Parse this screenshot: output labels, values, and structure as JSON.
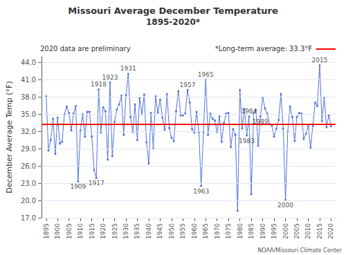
{
  "chart_data": {
    "type": "line",
    "title": "Missouri Average December Temperature",
    "subtitle": "1895-2020*",
    "ylabel": "December Average Temp (°F)",
    "marker": "circle",
    "x": [
      1895,
      1896,
      1897,
      1898,
      1899,
      1900,
      1901,
      1902,
      1903,
      1904,
      1905,
      1906,
      1907,
      1908,
      1909,
      1910,
      1911,
      1912,
      1913,
      1914,
      1915,
      1916,
      1917,
      1918,
      1919,
      1920,
      1921,
      1922,
      1923,
      1924,
      1925,
      1926,
      1927,
      1928,
      1929,
      1930,
      1931,
      1932,
      1933,
      1934,
      1935,
      1936,
      1937,
      1938,
      1939,
      1940,
      1941,
      1942,
      1943,
      1944,
      1945,
      1946,
      1947,
      1948,
      1949,
      1950,
      1951,
      1952,
      1953,
      1954,
      1955,
      1956,
      1957,
      1958,
      1959,
      1960,
      1961,
      1962,
      1963,
      1964,
      1965,
      1966,
      1967,
      1968,
      1969,
      1970,
      1971,
      1972,
      1973,
      1974,
      1975,
      1976,
      1977,
      1978,
      1979,
      1980,
      1981,
      1982,
      1983,
      1984,
      1985,
      1986,
      1987,
      1988,
      1989,
      1990,
      1991,
      1992,
      1993,
      1994,
      1995,
      1996,
      1997,
      1998,
      1999,
      2000,
      2001,
      2002,
      2003,
      2004,
      2005,
      2006,
      2007,
      2008,
      2009,
      2010,
      2011,
      2012,
      2013,
      2014,
      2015,
      2016,
      2017,
      2018,
      2019,
      2020
    ],
    "values": [
      38.1,
      28.7,
      30.5,
      34.2,
      28.1,
      34.4,
      29.9,
      30.2,
      35.0,
      36.3,
      35.2,
      32.2,
      35.1,
      36.4,
      23.3,
      32.1,
      35.0,
      31.1,
      35.4,
      35.4,
      31.1,
      25.3,
      23.9,
      39.3,
      31.8,
      36.2,
      35.5,
      27.1,
      40.5,
      27.7,
      33.7,
      35.8,
      36.7,
      38.2,
      31.4,
      38.3,
      42.0,
      34.5,
      31.9,
      36.7,
      30.5,
      37.8,
      35.0,
      38.4,
      30.1,
      26.4,
      35.2,
      29.0,
      38.1,
      35.3,
      37.5,
      34.4,
      32.3,
      38.5,
      32.6,
      30.9,
      30.3,
      35.5,
      39.0,
      34.8,
      34.8,
      35.1,
      39.2,
      37.0,
      32.4,
      31.8,
      35.4,
      31.9,
      22.5,
      31.9,
      41.0,
      31.4,
      35.1,
      34.2,
      33.9,
      31.9,
      34.6,
      30.2,
      33.5,
      35.1,
      35.2,
      29.3,
      32.4,
      31.4,
      18.2,
      39.2,
      32.5,
      35.9,
      31.3,
      34.6,
      21.1,
      35.1,
      35.7,
      29.5,
      34.6,
      37.9,
      36.0,
      35.1,
      33.3,
      33.0,
      31.1,
      32.5,
      34.0,
      38.5,
      32.5,
      20.1,
      32.0,
      36.3,
      34.5,
      30.3,
      34.5,
      35.2,
      35.1,
      30.7,
      31.6,
      32.9,
      29.2,
      33.0,
      37.0,
      36.4,
      43.5,
      33.8,
      37.9,
      32.7,
      34.8,
      32.9
    ],
    "xlim": [
      1893,
      2022
    ],
    "xticks": [
      1895,
      1900,
      1905,
      1910,
      1915,
      1920,
      1925,
      1930,
      1935,
      1940,
      1945,
      1950,
      1955,
      1960,
      1965,
      1970,
      1975,
      1980,
      1985,
      1990,
      1995,
      2000,
      2005,
      2010,
      2015,
      2020
    ],
    "ylim": [
      17.0,
      45.0
    ],
    "yticks": [
      {
        "value": 17.0,
        "label": "17.0"
      },
      {
        "value": 20.0,
        "label": "20.0"
      },
      {
        "value": 23.0,
        "label": "23.0"
      },
      {
        "value": 26.0,
        "label": "26.0"
      },
      {
        "value": 29.0,
        "label": "29.0"
      },
      {
        "value": 32.0,
        "label": "32.0"
      },
      {
        "value": 35.0,
        "label": "35.0"
      },
      {
        "value": 38.0,
        "label": "38.0"
      },
      {
        "value": 41.0,
        "label": "41.0"
      },
      {
        "value": 44.0,
        "label": "44.0"
      }
    ],
    "grid": true,
    "reference_line": {
      "value": 33.3,
      "color": "red",
      "label": "*Long-term average: 33.3°F"
    },
    "note": "2020 data are preliminary",
    "credit": "NOAA/Missouri Climate Center",
    "annotations": [
      {
        "text": "1909",
        "x": 1909,
        "position": "below"
      },
      {
        "text": "1917",
        "x": 1917,
        "position": "below"
      },
      {
        "text": "1918",
        "x": 1918,
        "position": "above"
      },
      {
        "text": "1923",
        "x": 1923,
        "position": "above"
      },
      {
        "text": "1931",
        "x": 1931,
        "position": "above"
      },
      {
        "text": "1957",
        "x": 1957,
        "position": "above"
      },
      {
        "text": "1963",
        "x": 1963,
        "position": "below"
      },
      {
        "text": "1965",
        "x": 1965,
        "position": "above"
      },
      {
        "text": "1983",
        "x": 1983,
        "position": "below"
      },
      {
        "text": "1984",
        "x": 1984,
        "position": "above"
      },
      {
        "text": "1989",
        "x": 1989,
        "position": "below"
      },
      {
        "text": "2000",
        "x": 2000,
        "position": "below"
      },
      {
        "text": "2015",
        "x": 2015,
        "position": "above"
      }
    ]
  }
}
